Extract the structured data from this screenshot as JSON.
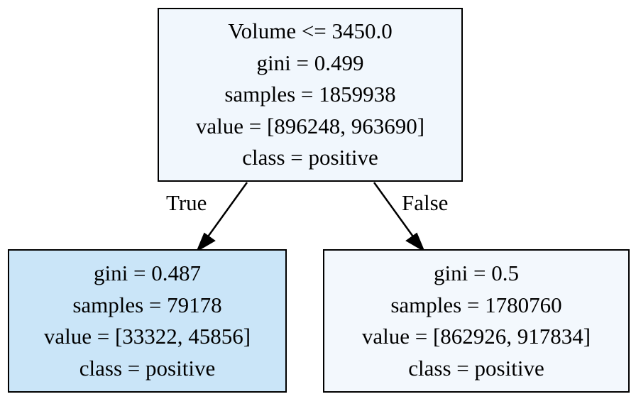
{
  "colors": {
    "root_fill": "#f1f7fd",
    "left_fill": "#cae5f8",
    "right_fill": "#f3f8fd",
    "border": "#000000",
    "edge": "#000000"
  },
  "nodes": {
    "root": {
      "condition": "Volume <= 3450.0",
      "gini": "gini = 0.499",
      "samples": "samples = 1859938",
      "value": "value = [896248, 963690]",
      "class": "class = positive"
    },
    "left": {
      "gini": "gini = 0.487",
      "samples": "samples = 79178",
      "value": "value = [33322, 45856]",
      "class": "class = positive"
    },
    "right": {
      "gini": "gini = 0.5",
      "samples": "samples = 1780760",
      "value": "value = [862926, 917834]",
      "class": "class = positive"
    }
  },
  "edges": {
    "true_label": "True",
    "false_label": "False"
  }
}
